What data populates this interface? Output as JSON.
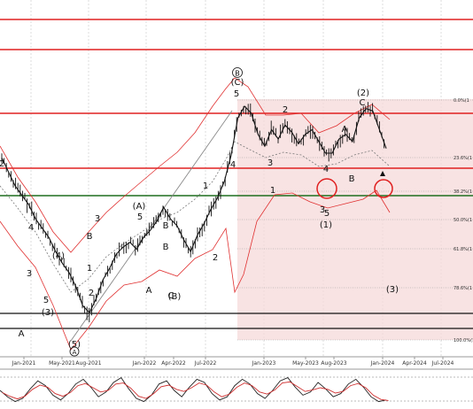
{
  "chart_data": {
    "type": "line",
    "title": "",
    "xlabel": "",
    "ylabel": "",
    "x_ticks": [
      "Jan-2021",
      "May-2021",
      "Aug-2021",
      "Jan-2022",
      "Apr-2022",
      "Jul-2022",
      "Jan-2023",
      "May-2023",
      "Aug-2023",
      "Jan-2024",
      "Apr-2024",
      "Jul-2024"
    ],
    "series": [
      {
        "values": [
          0.78,
          0.72,
          0.66,
          0.62,
          0.58,
          0.52,
          0.48,
          0.44,
          0.38,
          0.33,
          0.29,
          0.23,
          0.15,
          0.12,
          0.18,
          0.26,
          0.31,
          0.37,
          0.4,
          0.42,
          0.39,
          0.44,
          0.47,
          0.51,
          0.57,
          0.52,
          0.49,
          0.43,
          0.38,
          0.45,
          0.5,
          0.56,
          0.61,
          0.68,
          0.79,
          0.95,
          1.0,
          0.97,
          0.88,
          0.83,
          0.9,
          0.86,
          0.92,
          0.89,
          0.84,
          0.88,
          0.9,
          0.85,
          0.8,
          0.8,
          0.86,
          0.88,
          0.85,
          0.95,
          0.99,
          0.98,
          0.9,
          0.82
        ]
      }
    ],
    "fib_levels": [
      "0.0%(1",
      "23.6%(1",
      "38.2%(1",
      "50.0%(1",
      "61.8%(1",
      "78.6%(1",
      "100.0%(1"
    ],
    "wave_labels": [
      "2",
      "4",
      "3",
      "(4)",
      "5",
      "(3)",
      "(5)",
      "A",
      "B",
      "1",
      "2",
      "3",
      "(A)",
      "5",
      "B",
      "C",
      "A",
      "(B)",
      "1",
      "2",
      "B",
      "(C)",
      "5",
      "1",
      "2",
      "3",
      "4",
      "A",
      "B",
      "C",
      "(2)",
      "5",
      "4",
      "(1)",
      "3",
      "(3)"
    ],
    "oscillator": {
      "values": [
        0.5,
        0.3,
        0.15,
        0.25,
        0.55,
        0.8,
        0.65,
        0.35,
        0.2,
        0.4,
        0.7,
        0.85,
        0.6,
        0.3,
        0.45,
        0.75,
        0.9,
        0.55,
        0.25,
        0.15,
        0.35,
        0.7,
        0.8,
        0.5,
        0.3,
        0.6,
        0.85,
        0.75,
        0.4,
        0.2,
        0.3,
        0.65,
        0.85,
        0.7,
        0.4,
        0.25,
        0.5,
        0.8,
        0.9,
        0.6,
        0.35,
        0.45,
        0.75,
        0.55,
        0.3,
        0.4,
        0.7,
        0.85,
        0.6,
        0.3,
        0.15,
        0.2
      ]
    }
  }
}
